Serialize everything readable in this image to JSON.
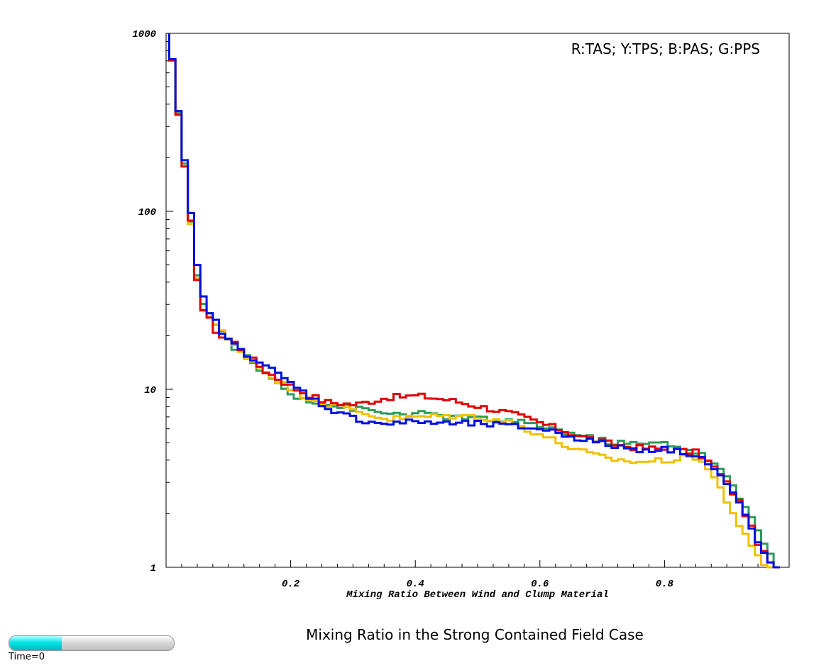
{
  "chart_data": {
    "type": "line",
    "step": true,
    "title": "Mixing Ratio in the Strong Contained Field Case",
    "xlabel": "Mixing Ratio Between Wind and Clump Material",
    "ylabel": "",
    "xlim": [
      0.0,
      1.0
    ],
    "ylim": [
      1,
      1000
    ],
    "yscale": "log",
    "grid": false,
    "legend_text": "R:TAS; Y:TPS; B:PAS; G:PPS",
    "legend_placement": "top-right",
    "x_ticks": [
      0.2,
      0.4,
      0.6,
      0.8
    ],
    "x_tick_labels": [
      "0.2",
      "0.4",
      "0.6",
      "0.8"
    ],
    "y_ticks": [
      1,
      10,
      100,
      1000
    ],
    "y_tick_labels": [
      "1",
      "10",
      "100",
      "1000"
    ],
    "x": [
      0.0,
      0.05,
      0.08,
      0.1,
      0.15,
      0.2,
      0.25,
      0.3,
      0.35,
      0.4,
      0.45,
      0.5,
      0.55,
      0.6,
      0.65,
      0.7,
      0.75,
      0.8,
      0.85,
      0.88,
      0.9,
      0.92,
      0.94,
      0.96,
      0.975
    ],
    "series": [
      {
        "name": "TAS",
        "color": "#e00000",
        "values": [
          1000,
          30,
          20,
          19,
          13,
          10.2,
          8.5,
          8.2,
          9.0,
          9.2,
          8.7,
          8.0,
          7.3,
          6.4,
          5.6,
          5.0,
          4.7,
          4.6,
          4.4,
          3.5,
          2.8,
          2.2,
          1.5,
          1.1,
          1.0
        ]
      },
      {
        "name": "TPS",
        "color": "#f0c000",
        "values": [
          1000,
          30,
          22,
          18,
          13,
          9.8,
          8.3,
          7.6,
          6.8,
          7.0,
          7.1,
          7.0,
          6.5,
          5.5,
          4.6,
          4.1,
          3.9,
          4.0,
          4.2,
          3.0,
          2.2,
          1.6,
          1.2,
          1.0,
          1.0
        ]
      },
      {
        "name": "PAS",
        "color": "#0010e0",
        "values": [
          1000,
          35,
          22,
          18,
          14,
          10.5,
          8.0,
          6.8,
          6.4,
          6.6,
          6.4,
          6.4,
          6.2,
          6.0,
          5.4,
          4.9,
          4.6,
          4.6,
          4.3,
          3.4,
          2.8,
          2.1,
          1.5,
          1.1,
          1.0
        ]
      },
      {
        "name": "PPS",
        "color": "#2e9a5c",
        "values": [
          1000,
          32,
          22,
          18,
          12.5,
          9.3,
          8.2,
          7.8,
          7.3,
          7.3,
          7.0,
          6.8,
          6.6,
          6.2,
          5.6,
          5.1,
          4.9,
          5.0,
          4.4,
          3.7,
          3.0,
          2.3,
          1.8,
          1.3,
          1.0
        ]
      }
    ]
  },
  "time_slider": {
    "label": "Time=0",
    "progress": 0.32
  }
}
